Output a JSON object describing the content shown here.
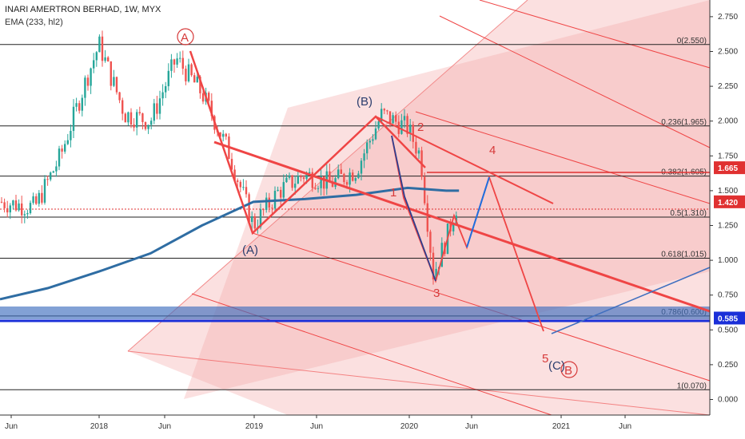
{
  "header": {
    "title": "INARI AMERTRON BERHAD, 1W, MYX",
    "indicator": "EMA (233, hl2)"
  },
  "chart_data": {
    "type": "line",
    "title": "INARI AMERTRON BERHAD, 1W, MYX",
    "xlabel": "",
    "ylabel": "",
    "y_ticks": [
      "2.750",
      "2.500",
      "2.250",
      "2.000",
      "1.750",
      "1.500",
      "1.250",
      "1.000",
      "0.750",
      "0.500",
      "0.250",
      "0.000"
    ],
    "x_ticks": [
      "Jun",
      "2018",
      "Jun",
      "2019",
      "Jun",
      "2020",
      "Jun",
      "2021",
      "Jun"
    ],
    "fib_levels": [
      {
        "label": "0(2.550)",
        "value": 2.55
      },
      {
        "label": "0.236(1.965)",
        "value": 1.965
      },
      {
        "label": "0.382(1.605)",
        "value": 1.605
      },
      {
        "label": "0.5(1.310)",
        "value": 1.31
      },
      {
        "label": "0.618(1.015)",
        "value": 1.015
      },
      {
        "label": "0.786(0.600)",
        "value": 0.6
      },
      {
        "label": "1(0.070)",
        "value": 0.07
      }
    ],
    "price_tags": [
      {
        "label": "1.665",
        "value": 1.665,
        "color": "#e03131"
      },
      {
        "label": "1.420",
        "value": 1.42,
        "color": "#e03131"
      },
      {
        "label": "0.585",
        "value": 0.585,
        "color": "#1a2fd8"
      }
    ],
    "price_series": {
      "name": "",
      "x": [
        "2017-06",
        "2017-08",
        "2017-10",
        "2017-12",
        "2018-01",
        "2018-03",
        "2018-05",
        "2018-07",
        "2018-09",
        "2018-11",
        "2019-01",
        "2019-03",
        "2019-05",
        "2019-07",
        "2019-09",
        "2019-11",
        "2020-01",
        "2020-02",
        "2020-03",
        "2020-04",
        "2020-05"
      ],
      "values": [
        1.42,
        1.38,
        1.75,
        2.3,
        2.55,
        2.05,
        2.0,
        2.45,
        2.2,
        1.8,
        1.25,
        1.5,
        1.62,
        1.55,
        1.65,
        2.05,
        1.95,
        1.75,
        0.9,
        1.15,
        1.45
      ]
    },
    "ema_series": {
      "name": "",
      "x": [
        "2017-05",
        "2017-09",
        "2018-01",
        "2018-05",
        "2018-09",
        "2019-01",
        "2019-05",
        "2019-09",
        "2020-01",
        "2020-04",
        "2020-05"
      ],
      "values": [
        0.72,
        0.8,
        0.92,
        1.05,
        1.25,
        1.42,
        1.44,
        1.47,
        1.52,
        1.5,
        1.5
      ]
    },
    "wave_labels": [
      "A",
      "(B)",
      "(A)",
      "1",
      "2",
      "3",
      "4",
      "5",
      "(C)",
      "B"
    ],
    "colors": {
      "fan": "#f28b8b",
      "trend": "#ef4545",
      "ema": "#2f6da3",
      "blue_line": "#1a2fd8",
      "band": "#3f6fbf"
    },
    "ylim": [
      -0.1,
      2.9
    ]
  }
}
